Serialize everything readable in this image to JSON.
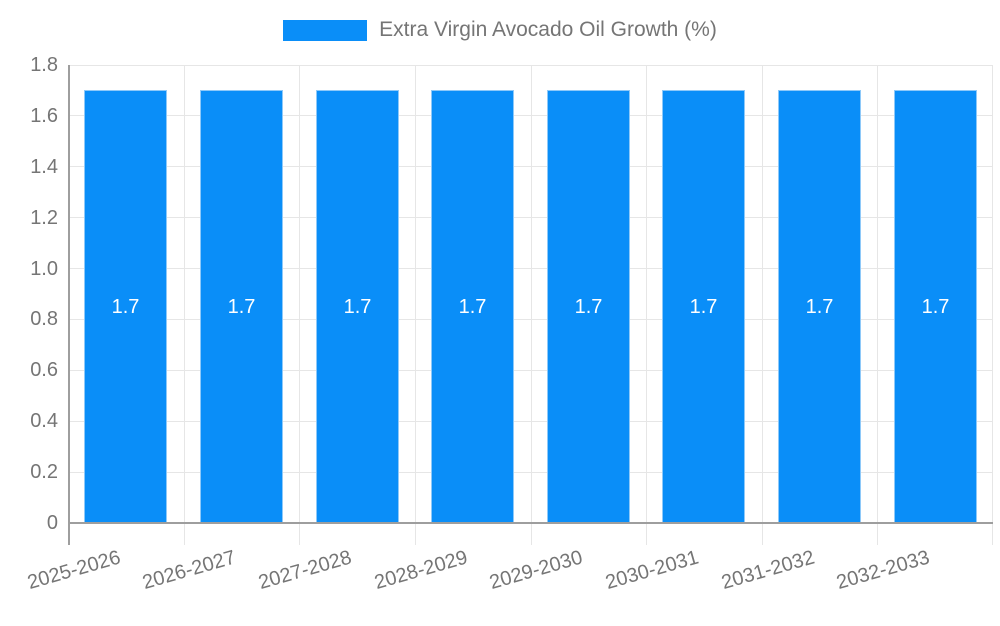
{
  "chart_data": {
    "type": "bar",
    "title": "",
    "legend": "Extra Virgin Avocado Oil Growth (%)",
    "legend_position": "top-center",
    "categories": [
      "2025-2026",
      "2026-2027",
      "2027-2028",
      "2028-2029",
      "2029-2030",
      "2030-2031",
      "2031-2032",
      "2032-2033"
    ],
    "values": [
      1.7,
      1.7,
      1.7,
      1.7,
      1.7,
      1.7,
      1.7,
      1.7
    ],
    "bar_labels": [
      "1.7",
      "1.7",
      "1.7",
      "1.7",
      "1.7",
      "1.7",
      "1.7",
      "1.7"
    ],
    "xlabel": "",
    "ylabel": "",
    "ylim": [
      0,
      1.8
    ],
    "ytick_step": 0.2,
    "ytick_labels": [
      "0",
      "0.2",
      "0.4",
      "0.6",
      "0.8",
      "1.0",
      "1.2",
      "1.4",
      "1.6",
      "1.8"
    ],
    "grid": true,
    "xlabel_rotation_deg": -16,
    "colors": {
      "bar_fill": "#0a8ef8",
      "bar_border": "#8ec9f9",
      "grid": "#e6e6e6",
      "axis": "#9e9e9e",
      "text": "#757575",
      "bar_label_text": "#ffffff",
      "background": "#ffffff"
    }
  }
}
